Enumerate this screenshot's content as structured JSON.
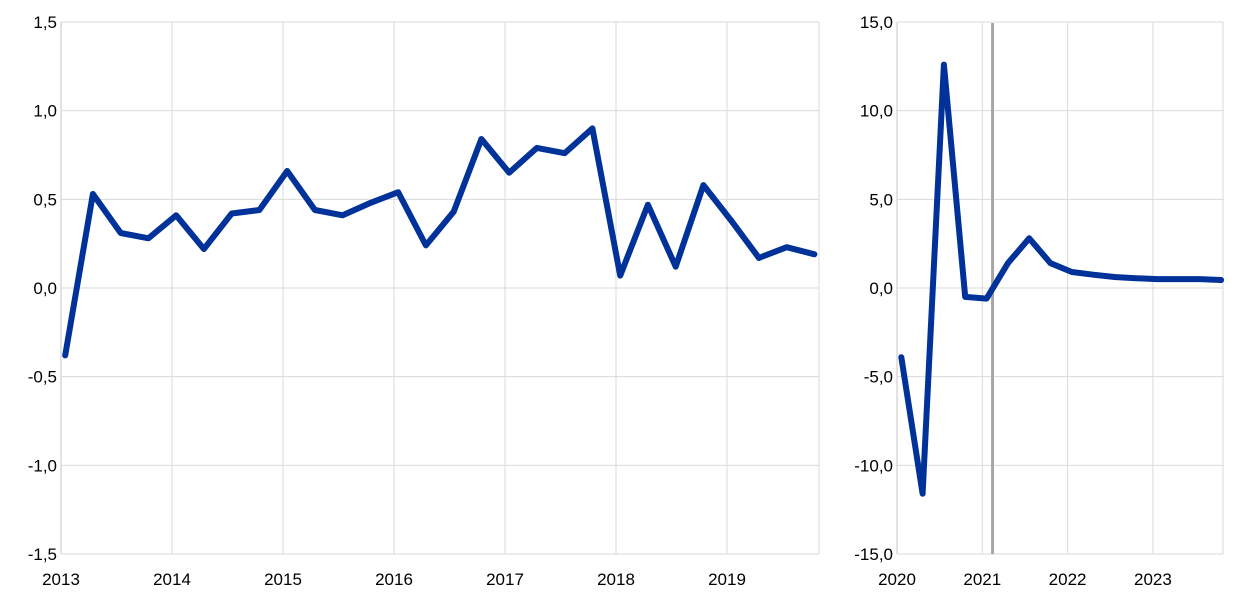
{
  "chart_data": [
    {
      "type": "line",
      "title": "",
      "xlabel": "",
      "ylabel": "",
      "ylim": [
        -1.5,
        1.5
      ],
      "yticks": [
        "-1,5",
        "-1,0",
        "-0,5",
        "0,0",
        "0,5",
        "1,0",
        "1,5"
      ],
      "ytick_values": [
        -1.5,
        -1.0,
        -0.5,
        0.0,
        0.5,
        1.0,
        1.5
      ],
      "xticks": [
        "2013",
        "2014",
        "2015",
        "2016",
        "2017",
        "2018",
        "2019"
      ],
      "grid": true,
      "line_color": "#003299",
      "series": [
        {
          "x": [
            "2013Q1",
            "2013Q2",
            "2013Q3",
            "2013Q4",
            "2014Q1",
            "2014Q2",
            "2014Q3",
            "2014Q4",
            "2015Q1",
            "2015Q2",
            "2015Q3",
            "2015Q4",
            "2016Q1",
            "2016Q2",
            "2016Q3",
            "2016Q4",
            "2017Q1",
            "2017Q2",
            "2017Q3",
            "2017Q4",
            "2018Q1",
            "2018Q2",
            "2018Q3",
            "2018Q4",
            "2019Q1",
            "2019Q2",
            "2019Q3",
            "2019Q4"
          ],
          "values": [
            -0.38,
            0.53,
            0.31,
            0.28,
            0.41,
            0.22,
            0.42,
            0.44,
            0.66,
            0.44,
            0.41,
            0.48,
            0.54,
            0.24,
            0.43,
            0.84,
            0.65,
            0.79,
            0.76,
            0.9,
            0.07,
            0.47,
            0.12,
            0.58,
            0.38,
            0.17,
            0.23,
            0.19
          ]
        }
      ]
    },
    {
      "type": "line",
      "title": "",
      "xlabel": "",
      "ylabel": "",
      "ylim": [
        -15,
        15
      ],
      "yticks": [
        "-15,0",
        "-10,0",
        "-5,0",
        "0,0",
        "5,0",
        "10,0",
        "15,0"
      ],
      "ytick_values": [
        -15,
        -10,
        -5,
        0,
        5,
        10,
        15
      ],
      "xticks": [
        "2020",
        "2021",
        "2022",
        "2023"
      ],
      "grid": true,
      "line_color": "#003299",
      "vertical_marker": {
        "x": "2021Q1",
        "color": "#a6a6a6"
      },
      "series": [
        {
          "x": [
            "2020Q1",
            "2020Q2",
            "2020Q3",
            "2020Q4",
            "2021Q1",
            "2021Q2",
            "2021Q3",
            "2021Q4",
            "2022Q1",
            "2022Q2",
            "2022Q3",
            "2022Q4",
            "2023Q1",
            "2023Q2",
            "2023Q3",
            "2023Q4"
          ],
          "values": [
            -3.9,
            -11.6,
            12.6,
            -0.5,
            -0.6,
            1.4,
            2.8,
            1.4,
            0.9,
            0.75,
            0.62,
            0.55,
            0.5,
            0.5,
            0.5,
            0.45
          ]
        }
      ]
    }
  ]
}
